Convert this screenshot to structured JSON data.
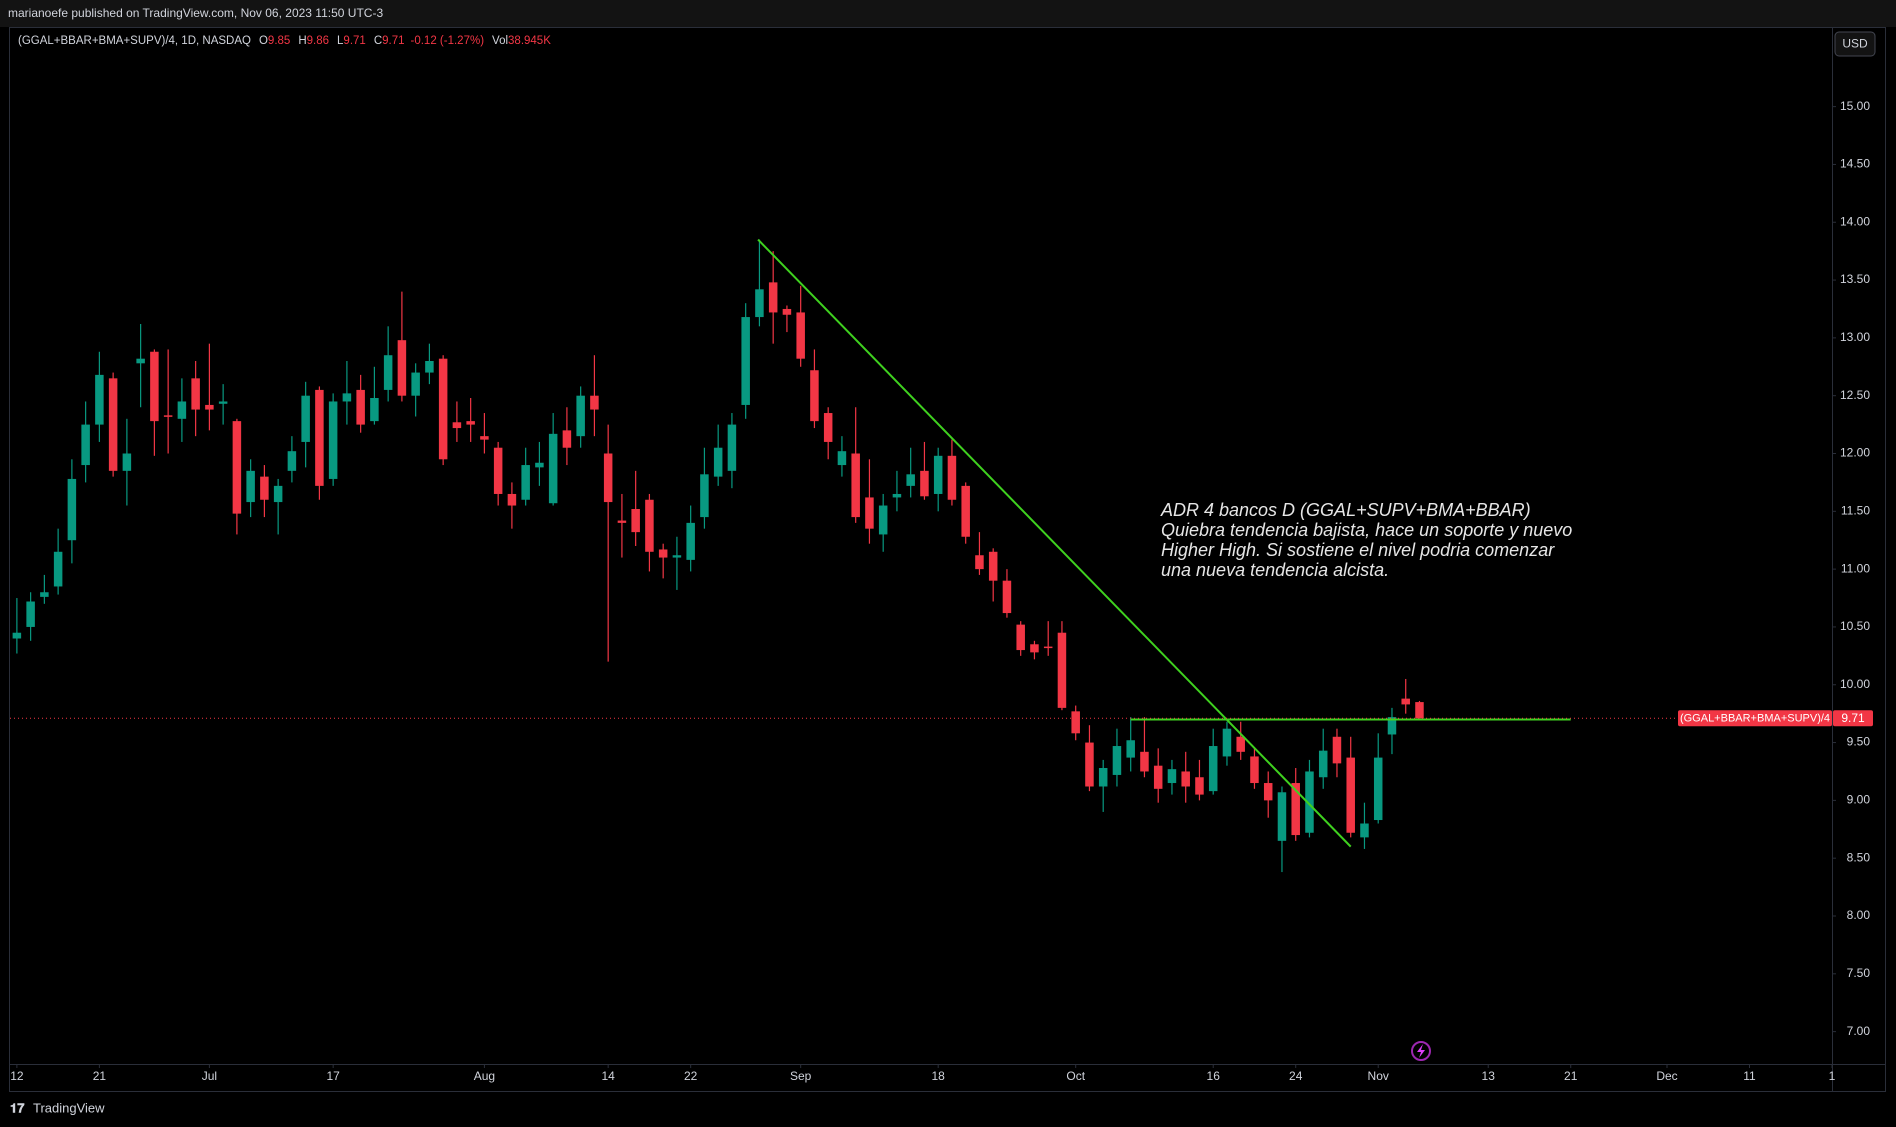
{
  "header": {
    "published": "marianoefe published on TradingView.com, Nov 06, 2023 11:50 UTC-3"
  },
  "footer": {
    "brand": "TradingView"
  },
  "chart_data": {
    "type": "candlestick",
    "legend_title": "(GGAL+BBAR+BMA+SUPV)/4, 1D, NASDAQ",
    "symbol": "(GGAL+BBAR+BMA+SUPV)/4",
    "ohlc_labels": [
      "O",
      "H",
      "L",
      "C"
    ],
    "change": "-0.12 (-1.27%)",
    "volume_label": "Vol",
    "volume": "38.945K",
    "currency": "USD",
    "up_color": "#089981",
    "down_color": "#f23645",
    "open": [
      10.4,
      10.5,
      10.76,
      10.85,
      11.25,
      11.9,
      12.25,
      12.65,
      11.85,
      12.78,
      12.88,
      12.33,
      12.3,
      12.65,
      12.42,
      12.43,
      12.28,
      11.58,
      11.8,
      11.58,
      11.85,
      12.1,
      12.55,
      11.78,
      12.45,
      12.55,
      12.28,
      12.55,
      12.98,
      12.5,
      12.7,
      12.82,
      12.27,
      12.28,
      12.15,
      12.05,
      11.65,
      11.6,
      11.88,
      11.57,
      12.2,
      12.15,
      12.5,
      12.0,
      11.42,
      11.52,
      11.6,
      11.17,
      11.1,
      11.08,
      11.45,
      11.8,
      11.85,
      12.42,
      13.18,
      13.48,
      13.25,
      13.22,
      12.72,
      12.35,
      11.9,
      12.0,
      11.62,
      11.3,
      11.62,
      11.72,
      11.85,
      11.65,
      11.98,
      11.72,
      11.12,
      11.15,
      10.9,
      10.52,
      10.35,
      10.33,
      10.45,
      9.77,
      9.5,
      9.12,
      9.22,
      9.37,
      9.42,
      9.3,
      9.15,
      9.25,
      9.2,
      9.08,
      9.38,
      9.55,
      9.38,
      9.15,
      8.65,
      9.15,
      8.72,
      9.2,
      9.55,
      9.37,
      8.68,
      8.83,
      9.57,
      9.88,
      9.85
    ],
    "high": [
      10.75,
      10.8,
      10.95,
      11.35,
      11.95,
      12.45,
      12.88,
      12.7,
      12.3,
      13.12,
      12.9,
      12.9,
      12.65,
      12.8,
      12.95,
      12.6,
      12.3,
      11.95,
      11.9,
      11.78,
      12.15,
      12.62,
      12.58,
      12.52,
      12.8,
      12.68,
      12.75,
      13.1,
      13.4,
      12.78,
      12.95,
      12.85,
      12.45,
      12.48,
      12.35,
      12.1,
      11.75,
      12.05,
      12.1,
      12.35,
      12.4,
      12.58,
      12.85,
      12.25,
      11.65,
      11.85,
      11.65,
      11.22,
      11.28,
      11.55,
      12.05,
      12.25,
      12.35,
      13.3,
      13.85,
      13.75,
      13.28,
      13.45,
      12.9,
      12.4,
      12.15,
      12.4,
      11.95,
      11.65,
      11.85,
      12.05,
      12.1,
      12.05,
      12.12,
      11.75,
      11.32,
      11.18,
      11.0,
      10.55,
      10.38,
      10.55,
      10.55,
      9.82,
      9.65,
      9.35,
      9.62,
      9.72,
      9.72,
      9.45,
      9.35,
      9.42,
      9.35,
      9.62,
      9.68,
      9.68,
      9.45,
      9.25,
      9.12,
      9.28,
      9.35,
      9.62,
      9.62,
      9.55,
      8.98,
      9.58,
      9.8,
      10.05,
      9.86
    ],
    "low": [
      10.27,
      10.38,
      10.7,
      10.78,
      11.05,
      11.75,
      12.1,
      11.8,
      11.55,
      12.4,
      11.98,
      12.0,
      12.1,
      12.15,
      12.2,
      12.25,
      11.3,
      11.45,
      11.45,
      11.3,
      11.75,
      11.88,
      11.6,
      11.72,
      12.25,
      12.18,
      12.25,
      12.45,
      12.45,
      12.32,
      12.6,
      11.9,
      12.1,
      12.1,
      12.0,
      11.55,
      11.35,
      11.55,
      11.72,
      11.55,
      11.9,
      12.05,
      12.15,
      10.2,
      11.1,
      11.2,
      10.98,
      10.92,
      10.82,
      10.98,
      11.35,
      11.72,
      11.7,
      12.3,
      13.1,
      12.95,
      13.05,
      12.75,
      12.22,
      11.95,
      11.8,
      11.4,
      11.22,
      11.15,
      11.5,
      11.62,
      11.6,
      11.5,
      11.55,
      11.22,
      10.95,
      10.72,
      10.58,
      10.25,
      10.22,
      10.25,
      9.78,
      9.52,
      9.08,
      8.9,
      9.12,
      9.25,
      9.2,
      8.98,
      9.05,
      8.98,
      9.0,
      9.05,
      9.3,
      9.35,
      9.1,
      8.85,
      8.38,
      8.65,
      8.68,
      9.1,
      9.2,
      8.68,
      8.58,
      8.8,
      9.4,
      9.75,
      9.71
    ],
    "close": [
      10.45,
      10.72,
      10.8,
      11.15,
      11.78,
      12.25,
      12.68,
      11.85,
      12.0,
      12.82,
      12.28,
      12.32,
      12.45,
      12.38,
      12.38,
      12.45,
      11.48,
      11.85,
      11.6,
      11.72,
      12.02,
      12.5,
      11.72,
      12.45,
      12.52,
      12.25,
      12.48,
      12.85,
      12.5,
      12.7,
      12.8,
      11.95,
      12.22,
      12.25,
      12.12,
      11.65,
      11.55,
      11.9,
      11.92,
      12.17,
      12.05,
      12.5,
      12.38,
      11.58,
      11.4,
      11.32,
      11.15,
      11.1,
      11.12,
      11.4,
      11.82,
      12.05,
      12.25,
      13.18,
      13.42,
      13.22,
      13.2,
      12.82,
      12.28,
      12.1,
      12.02,
      11.45,
      11.35,
      11.55,
      11.65,
      11.82,
      11.63,
      11.98,
      11.6,
      11.28,
      11.0,
      10.9,
      10.62,
      10.3,
      10.28,
      10.32,
      9.8,
      9.58,
      9.12,
      9.28,
      9.47,
      9.52,
      9.25,
      9.1,
      9.27,
      9.12,
      9.05,
      9.47,
      9.62,
      9.42,
      9.15,
      9.0,
      9.07,
      8.7,
      9.25,
      9.43,
      9.32,
      8.72,
      8.8,
      9.37,
      9.72,
      9.83,
      9.71
    ],
    "xlim": [
      -0.5,
      132
    ],
    "xticks": [
      {
        "value": 0,
        "label": "12"
      },
      {
        "value": 6,
        "label": "21"
      },
      {
        "value": 14,
        "label": "Jul"
      },
      {
        "value": 23,
        "label": "17"
      },
      {
        "value": 34,
        "label": "Aug"
      },
      {
        "value": 43,
        "label": "14"
      },
      {
        "value": 49,
        "label": "22"
      },
      {
        "value": 57,
        "label": "Sep"
      },
      {
        "value": 67,
        "label": "18"
      },
      {
        "value": 77,
        "label": "Oct"
      },
      {
        "value": 87,
        "label": "16"
      },
      {
        "value": 93,
        "label": "24"
      },
      {
        "value": 99,
        "label": "Nov"
      },
      {
        "value": 107,
        "label": "13"
      },
      {
        "value": 113,
        "label": "21"
      },
      {
        "value": 120,
        "label": "Dec"
      },
      {
        "value": 126,
        "label": "11"
      },
      {
        "value": 132,
        "label": "1"
      }
    ],
    "ylim": [
      6.72,
      15.68
    ],
    "yticks": [
      {
        "value": 7,
        "label": "7.00"
      },
      {
        "value": 7.5,
        "label": "7.50"
      },
      {
        "value": 8,
        "label": "8.00"
      },
      {
        "value": 8.5,
        "label": "8.50"
      },
      {
        "value": 9,
        "label": "9.00"
      },
      {
        "value": 9.5,
        "label": "9.50"
      },
      {
        "value": 10,
        "label": "10.00"
      },
      {
        "value": 10.5,
        "label": "10.50"
      },
      {
        "value": 11,
        "label": "11.00"
      },
      {
        "value": 11.5,
        "label": "11.50"
      },
      {
        "value": 12,
        "label": "12.00"
      },
      {
        "value": 12.5,
        "label": "12.50"
      },
      {
        "value": 13,
        "label": "13.00"
      },
      {
        "value": 13.5,
        "label": "13.50"
      },
      {
        "value": 14,
        "label": "14.00"
      },
      {
        "value": 14.5,
        "label": "14.50"
      },
      {
        "value": 15,
        "label": "15.00"
      }
    ],
    "trendlines": [
      {
        "x": [
          53.9,
          97
        ],
        "y": [
          13.85,
          8.6
        ],
        "color": "#3fd11f"
      },
      {
        "x": [
          81,
          113
        ],
        "y": [
          9.7,
          9.7
        ],
        "color": "#3fd11f"
      }
    ],
    "annotation": [
      "ADR 4 bancos D (GGAL+SUPV+BMA+BBAR)",
      "Quiebra tendencia bajista, hace un soporte y  nuevo",
      "Higher High. Si sostiene el nivel podria comenzar",
      "una nueva tendencia alcista."
    ]
  }
}
